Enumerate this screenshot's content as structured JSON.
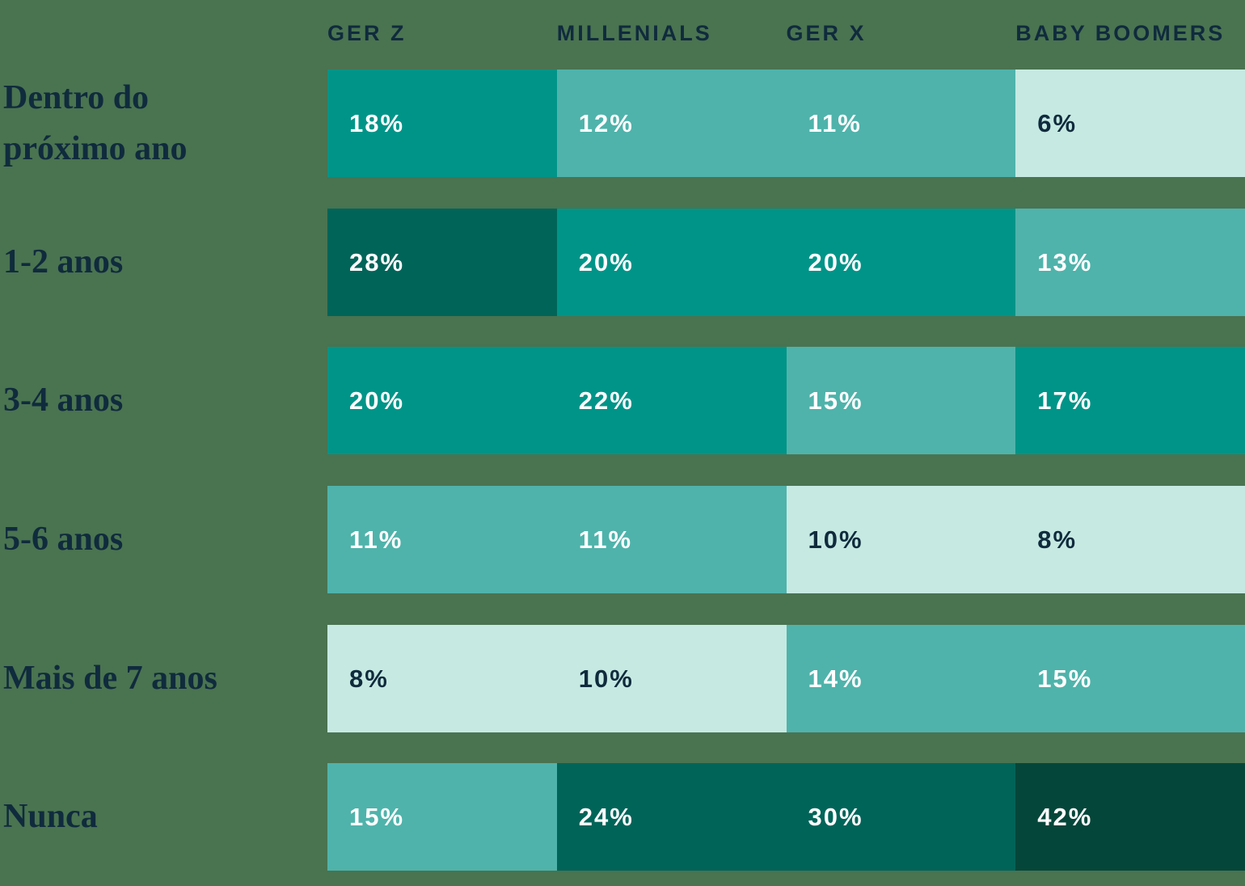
{
  "palette": {
    "bg": "#4a7350",
    "navy": "#0f2b3d",
    "tier1": "#c6e9e2",
    "tier2": "#4fb3ab",
    "tier3": "#009488",
    "tier4": "#016459",
    "tier5": "#05463a"
  },
  "header": {
    "columns": [
      "GER Z",
      "MILLENIALS",
      "GER X",
      "BABY BOOMERS"
    ]
  },
  "rows": [
    {
      "label": "Dentro do próximo ano",
      "cells": [
        {
          "text": "18%",
          "tone": "tier3"
        },
        {
          "text": "12%",
          "tone": "tier2"
        },
        {
          "text": "11%",
          "tone": "tier2"
        },
        {
          "text": "6%",
          "tone": "tier1"
        }
      ]
    },
    {
      "label": "1-2 anos",
      "cells": [
        {
          "text": "28%",
          "tone": "tier4"
        },
        {
          "text": "20%",
          "tone": "tier3"
        },
        {
          "text": "20%",
          "tone": "tier3"
        },
        {
          "text": "13%",
          "tone": "tier2"
        }
      ]
    },
    {
      "label": "3-4 anos",
      "cells": [
        {
          "text": "20%",
          "tone": "tier3"
        },
        {
          "text": "22%",
          "tone": "tier3"
        },
        {
          "text": "15%",
          "tone": "tier2"
        },
        {
          "text": "17%",
          "tone": "tier3"
        }
      ]
    },
    {
      "label": "5-6 anos",
      "cells": [
        {
          "text": "11%",
          "tone": "tier2"
        },
        {
          "text": "11%",
          "tone": "tier2"
        },
        {
          "text": "10%",
          "tone": "tier1"
        },
        {
          "text": "8%",
          "tone": "tier1"
        }
      ]
    },
    {
      "label": "Mais de 7 anos",
      "cells": [
        {
          "text": "8%",
          "tone": "tier1"
        },
        {
          "text": "10%",
          "tone": "tier1"
        },
        {
          "text": "14%",
          "tone": "tier2"
        },
        {
          "text": "15%",
          "tone": "tier2"
        }
      ]
    },
    {
      "label": "Nunca",
      "cells": [
        {
          "text": "15%",
          "tone": "tier2"
        },
        {
          "text": "24%",
          "tone": "tier4"
        },
        {
          "text": "30%",
          "tone": "tier4"
        },
        {
          "text": "42%",
          "tone": "tier5"
        }
      ]
    }
  ],
  "chart_data": {
    "type": "heatmap",
    "title": "",
    "categories": [
      "Ger Z",
      "Millenials",
      "Ger X",
      "Baby Boomers"
    ],
    "row_labels": [
      "Dentro do próximo ano",
      "1-2 anos",
      "3-4 anos",
      "5-6 anos",
      "Mais de 7 anos",
      "Nunca"
    ],
    "series": [
      {
        "name": "Ger Z",
        "values": [
          18,
          28,
          20,
          11,
          8,
          15
        ]
      },
      {
        "name": "Millenials",
        "values": [
          12,
          20,
          22,
          11,
          10,
          24
        ]
      },
      {
        "name": "Ger X",
        "values": [
          11,
          20,
          15,
          10,
          14,
          30
        ]
      },
      {
        "name": "Baby Boomers",
        "values": [
          6,
          13,
          17,
          8,
          15,
          42
        ]
      }
    ],
    "unit": "%",
    "value_range": [
      6,
      42
    ],
    "grid": false,
    "legend_position": "none"
  }
}
